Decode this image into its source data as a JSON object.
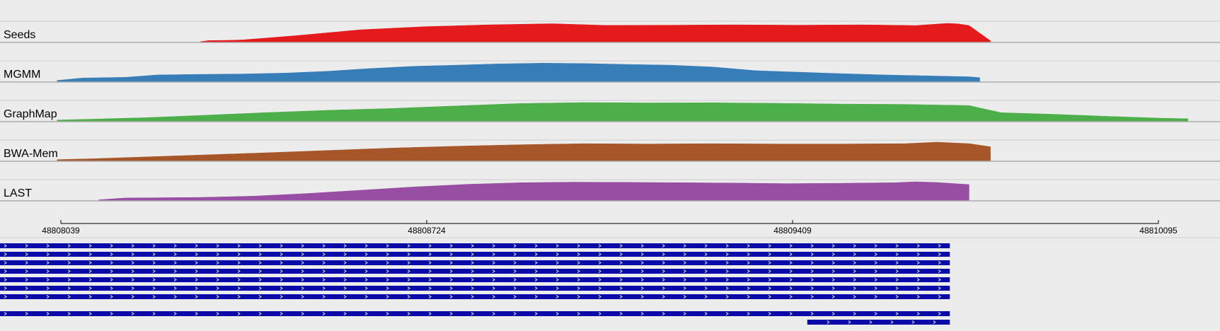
{
  "chart_data": {
    "type": "area",
    "tracks": [
      {
        "name": "Seeds",
        "color": "#e41a1c",
        "x": [
          48808300,
          48808315,
          48808360,
          48808380,
          48808480,
          48808600,
          48808720,
          48808840,
          48808960,
          48809060,
          48809180,
          48809300,
          48809420,
          48809540,
          48809640,
          48809700,
          48809720,
          48809740,
          48809780
        ],
        "values": [
          0.0,
          0.06,
          0.08,
          0.1,
          0.33,
          0.65,
          0.82,
          0.92,
          0.98,
          0.89,
          0.9,
          0.92,
          0.9,
          0.92,
          0.88,
          1.0,
          0.97,
          0.88,
          0.05
        ]
      },
      {
        "name": "MGMM",
        "color": "#377eb8",
        "x": [
          48808032,
          48808080,
          48808160,
          48808220,
          48808300,
          48808380,
          48808460,
          48808540,
          48808620,
          48808700,
          48808780,
          48808860,
          48808940,
          48809020,
          48809100,
          48809180,
          48809260,
          48809340,
          48809420,
          48809500,
          48809580,
          48809660,
          48809740,
          48809760
        ],
        "values": [
          0.05,
          0.18,
          0.22,
          0.35,
          0.38,
          0.4,
          0.45,
          0.55,
          0.7,
          0.82,
          0.88,
          0.95,
          0.99,
          0.97,
          0.92,
          0.88,
          0.78,
          0.58,
          0.5,
          0.42,
          0.35,
          0.3,
          0.25,
          0.2
        ]
      },
      {
        "name": "GraphMap",
        "color": "#4daf4a",
        "x": [
          48808032,
          48808100,
          48808200,
          48808300,
          48808420,
          48808540,
          48808660,
          48808780,
          48808900,
          48809020,
          48809140,
          48809260,
          48809380,
          48809500,
          48809620,
          48809740,
          48809800,
          48809900,
          48810000,
          48810100,
          48810150
        ],
        "values": [
          0.05,
          0.1,
          0.18,
          0.3,
          0.45,
          0.58,
          0.68,
          0.82,
          0.95,
          1.0,
          0.98,
          0.99,
          0.96,
          0.92,
          0.9,
          0.84,
          0.45,
          0.36,
          0.25,
          0.15,
          0.12
        ]
      },
      {
        "name": "BWA-Mem",
        "color": "#a65628",
        "x": [
          48808032,
          48808100,
          48808200,
          48808300,
          48808420,
          48808540,
          48808660,
          48808780,
          48808900,
          48809020,
          48809140,
          48809260,
          48809380,
          48809500,
          48809620,
          48809680,
          48809740,
          48809780
        ],
        "values": [
          0.05,
          0.1,
          0.2,
          0.3,
          0.42,
          0.55,
          0.68,
          0.78,
          0.86,
          0.92,
          0.9,
          0.92,
          0.9,
          0.9,
          0.92,
          1.0,
          0.92,
          0.75
        ]
      },
      {
        "name": "LAST",
        "color": "#984ea3",
        "x": [
          48808110,
          48808160,
          48808300,
          48808400,
          48808500,
          48808600,
          48808700,
          48808800,
          48808900,
          48809000,
          48809100,
          48809200,
          48809300,
          48809400,
          48809500,
          48809600,
          48809640,
          48809680,
          48809740
        ],
        "values": [
          0.02,
          0.12,
          0.15,
          0.22,
          0.36,
          0.54,
          0.72,
          0.86,
          0.95,
          0.98,
          0.97,
          0.95,
          0.93,
          0.9,
          0.92,
          0.95,
          1.0,
          0.96,
          0.85
        ]
      }
    ],
    "axis": {
      "ticks": [
        "48808039",
        "48808724",
        "48809409",
        "48810095"
      ],
      "range": [
        48807925,
        48810210
      ]
    },
    "reads": {
      "color": "#0a0aa8",
      "rows": [
        {
          "start": 48807925,
          "end": 48809704
        },
        {
          "start": 48807925,
          "end": 48809704
        },
        {
          "start": 48807925,
          "end": 48809704
        },
        {
          "start": 48807925,
          "end": 48809704
        },
        {
          "start": 48807925,
          "end": 48809704
        },
        {
          "start": 48807925,
          "end": 48809704
        },
        {
          "start": 48807925,
          "end": 48809704
        },
        {
          "start": 48807925,
          "end": 48809704
        },
        {
          "start": 48807925,
          "end": 48809704
        },
        {
          "start": 48807925,
          "end": 48809704
        },
        {
          "start": 48809437,
          "end": 48809704
        }
      ]
    }
  }
}
